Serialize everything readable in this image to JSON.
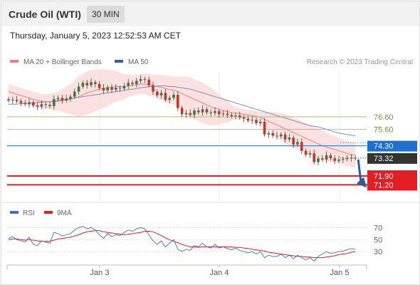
{
  "header": {
    "title": "Crude Oil (WTI)",
    "timeframe": "30 MIN"
  },
  "datetime": "Thursday, January 5, 2023 12:52:53 AM CET",
  "colors": {
    "bollinger": "#f08080",
    "ma50": "#3a5f9e",
    "resistance": "#8bc34a",
    "pivot": "#1f6fd1",
    "support": "#e31e24",
    "arrow": "#2b5a9e",
    "rsi": "#3a6fd8",
    "rsi_ma": "#e31e24"
  },
  "chart_data": [
    {
      "type": "candlestick",
      "legend": [
        {
          "name": "MA 20 + Bollinger Bands",
          "color": "#f08080"
        },
        {
          "name": "MA 50",
          "color": "#3a5f9e"
        }
      ],
      "source": "Research © 2023 Trading Central",
      "x_ticks": [
        "Jan 3",
        "Jan 4",
        "Jan 5"
      ],
      "levels": [
        {
          "label": "76.60",
          "value": 76.6,
          "kind": "resistance"
        },
        {
          "label": "75.60",
          "value": 75.6,
          "kind": "resistance"
        },
        {
          "label": "74.30",
          "value": 74.3,
          "kind": "pivot"
        },
        {
          "label": "71.90",
          "value": 71.9,
          "kind": "support"
        },
        {
          "label": "71.20",
          "value": 71.2,
          "kind": "support"
        }
      ],
      "last_price": {
        "label": "73.32",
        "value": 73.32
      },
      "close": [
        77.9,
        77.95,
        77.85,
        77.7,
        77.6,
        77.75,
        77.5,
        77.4,
        77.6,
        77.55,
        77.45,
        78.0,
        78.1,
        77.9,
        78.05,
        78.2,
        78.6,
        79.0,
        79.3,
        79.1,
        79.35,
        79.2,
        78.9,
        78.7,
        78.95,
        78.75,
        78.9,
        78.85,
        79.05,
        79.3,
        79.2,
        79.45,
        79.6,
        79.55,
        79.1,
        78.6,
        78.3,
        78.5,
        77.95,
        78.1,
        78.35,
        77.3,
        76.8,
        76.9,
        76.75,
        77.1,
        76.95,
        77.2,
        76.95,
        76.9,
        77.05,
        76.8,
        76.85,
        76.75,
        76.65,
        76.7,
        76.55,
        76.45,
        76.3,
        76.35,
        76.1,
        76.2,
        75.2,
        75.3,
        75.1,
        75.05,
        75.2,
        74.8,
        74.95,
        74.4,
        74.6,
        73.9,
        73.6,
        73.7,
        73.0,
        73.3,
        73.2,
        73.55,
        73.3,
        73.1,
        73.2,
        73.25,
        73.3,
        73.35,
        73.32
      ],
      "bb_mid": [
        78.6,
        78.5,
        78.4,
        78.3,
        78.2,
        78.1,
        78.0,
        77.9,
        77.8,
        77.8,
        77.8,
        77.8,
        77.85,
        77.9,
        77.95,
        78.0,
        78.1,
        78.2,
        78.35,
        78.5,
        78.6,
        78.7,
        78.8,
        78.85,
        78.9,
        78.95,
        79.0,
        79.0,
        79.0,
        79.05,
        79.1,
        79.15,
        79.2,
        79.2,
        79.15,
        79.1,
        79.0,
        78.95,
        78.85,
        78.75,
        78.7,
        78.6,
        78.45,
        78.3,
        78.15,
        78.0,
        77.85,
        77.7,
        77.55,
        77.4,
        77.3,
        77.2,
        77.1,
        77.0,
        76.95,
        76.9,
        76.85,
        76.8,
        76.75,
        76.7,
        76.65,
        76.55,
        76.4,
        76.25,
        76.1,
        75.95,
        75.8,
        75.65,
        75.5,
        75.35,
        75.2,
        75.05,
        74.9,
        74.75,
        74.6,
        74.45,
        74.3,
        74.2,
        74.1,
        74.0,
        73.9,
        73.8,
        73.7,
        73.6,
        73.55
      ],
      "bb_upper": [
        79.2,
        79.1,
        79.0,
        78.9,
        78.8,
        78.7,
        78.6,
        78.5,
        78.4,
        78.4,
        78.4,
        78.5,
        78.6,
        78.8,
        79.0,
        79.2,
        79.5,
        79.8,
        80.0,
        80.2,
        80.3,
        80.35,
        80.4,
        80.4,
        80.35,
        80.3,
        80.2,
        80.1,
        80.0,
        79.95,
        79.9,
        79.95,
        80.0,
        80.05,
        80.0,
        79.95,
        79.95,
        79.95,
        79.9,
        79.85,
        79.8,
        79.8,
        79.8,
        79.8,
        79.75,
        79.6,
        79.45,
        79.3,
        79.1,
        78.9,
        78.65,
        78.4,
        78.1,
        77.85,
        77.6,
        77.4,
        77.3,
        77.2,
        77.15,
        77.1,
        77.05,
        77.0,
        77.0,
        77.0,
        77.0,
        76.95,
        76.9,
        76.8,
        76.7,
        76.55,
        76.4,
        76.25,
        76.1,
        75.95,
        75.8,
        75.65,
        75.5,
        75.35,
        75.2,
        75.05,
        74.9,
        74.8,
        74.7,
        74.6,
        74.55
      ],
      "bb_lower": [
        78.0,
        77.9,
        77.8,
        77.7,
        77.6,
        77.5,
        77.4,
        77.3,
        77.2,
        77.2,
        77.2,
        77.1,
        77.1,
        77.0,
        76.9,
        76.8,
        76.7,
        76.6,
        76.7,
        76.8,
        76.9,
        77.05,
        77.2,
        77.3,
        77.45,
        77.6,
        77.8,
        77.9,
        78.0,
        78.15,
        78.3,
        78.35,
        78.4,
        78.35,
        78.3,
        78.25,
        78.05,
        77.95,
        77.8,
        77.65,
        77.6,
        77.4,
        77.1,
        76.8,
        76.55,
        76.4,
        76.25,
        76.1,
        76.0,
        75.9,
        75.95,
        76.0,
        76.1,
        76.15,
        76.3,
        76.4,
        76.4,
        76.4,
        76.35,
        76.3,
        76.25,
        76.1,
        75.8,
        75.5,
        75.2,
        74.95,
        74.7,
        74.5,
        74.3,
        74.15,
        74.0,
        73.85,
        73.7,
        73.55,
        73.4,
        73.25,
        73.1,
        73.05,
        73.0,
        72.95,
        72.9,
        72.8,
        72.7,
        72.6,
        72.55
      ],
      "ma50": [
        77.6,
        77.6,
        77.6,
        77.65,
        77.65,
        77.7,
        77.7,
        77.75,
        77.75,
        77.8,
        77.8,
        77.85,
        77.9,
        77.95,
        78.0,
        78.05,
        78.1,
        78.15,
        78.2,
        78.25,
        78.3,
        78.35,
        78.4,
        78.45,
        78.5,
        78.55,
        78.6,
        78.65,
        78.7,
        78.75,
        78.8,
        78.85,
        78.9,
        78.95,
        79.0,
        79.0,
        79.05,
        79.05,
        79.05,
        79.0,
        79.0,
        78.95,
        78.9,
        78.85,
        78.8,
        78.7,
        78.6,
        78.5,
        78.4,
        78.3,
        78.2,
        78.1,
        78.0,
        77.9,
        77.8,
        77.7,
        77.6,
        77.5,
        77.4,
        77.3,
        77.2,
        77.1,
        77.0,
        76.9,
        76.8,
        76.7,
        76.6,
        76.5,
        76.4,
        76.3,
        76.2,
        76.1,
        76.0,
        75.9,
        75.85,
        75.8,
        75.7,
        75.6,
        75.5,
        75.4,
        75.3,
        75.25,
        75.2,
        75.15,
        75.1
      ]
    },
    {
      "type": "line",
      "legend": [
        {
          "name": "RSI",
          "color": "#3a6fd8"
        },
        {
          "name": "9MA",
          "color": "#e31e24"
        }
      ],
      "y_ticks": [
        70,
        50,
        30
      ],
      "rsi": [
        52,
        55,
        50,
        48,
        46,
        54,
        42,
        40,
        48,
        46,
        44,
        62,
        60,
        56,
        58,
        60,
        66,
        70,
        72,
        68,
        70,
        66,
        58,
        52,
        60,
        55,
        58,
        57,
        62,
        66,
        64,
        68,
        70,
        68,
        58,
        48,
        42,
        48,
        38,
        44,
        50,
        34,
        30,
        34,
        32,
        40,
        38,
        44,
        38,
        36,
        42,
        36,
        38,
        35,
        33,
        36,
        32,
        30,
        28,
        30,
        26,
        30,
        20,
        24,
        22,
        22,
        26,
        20,
        24,
        18,
        24,
        20,
        16,
        20,
        14,
        22,
        26,
        30,
        27,
        28,
        30,
        31,
        33,
        35,
        34
      ],
      "rsi_ma": [
        50,
        51,
        51,
        50,
        49,
        50,
        49,
        48,
        47,
        47,
        47,
        49,
        51,
        52,
        53,
        54,
        56,
        58,
        61,
        63,
        64,
        65,
        65,
        63,
        62,
        61,
        60,
        59,
        58,
        59,
        60,
        61,
        62,
        64,
        64,
        63,
        60,
        57,
        53,
        50,
        47,
        45,
        42,
        40,
        38,
        38,
        37,
        38,
        38,
        38,
        38,
        38,
        38,
        38,
        38,
        37,
        37,
        36,
        35,
        34,
        33,
        32,
        31,
        29,
        28,
        27,
        26,
        25,
        24,
        23,
        22,
        22,
        21,
        21,
        20,
        20,
        20,
        21,
        22,
        23,
        25,
        26,
        27,
        29,
        30
      ]
    }
  ]
}
